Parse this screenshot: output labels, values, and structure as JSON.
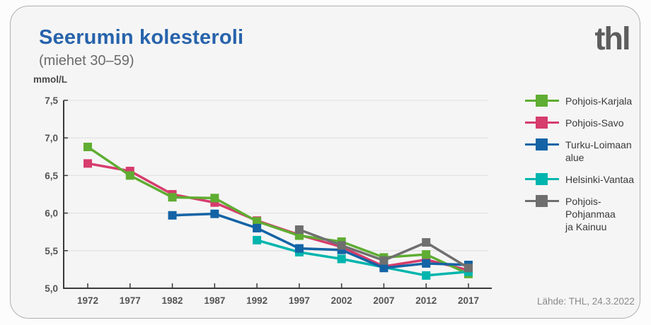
{
  "header": {
    "title": "Seerumin kolesteroli",
    "subtitle": "(miehet 30–59)",
    "logo_text": "thl"
  },
  "footer": {
    "source": "Lähde: THL, 24.3.2022"
  },
  "colors": {
    "title_blue": "#2763ab",
    "logo_gray": "#5d5d5d",
    "axis": "#3a3a3a",
    "gridline": "#e3e3e3",
    "tick_label": "#555555",
    "card_background": "#f5f5f5",
    "card_border": "#b0b0b0"
  },
  "chart_data": {
    "type": "line",
    "title": "Seerumin kolesteroli",
    "subtitle": "(miehet 30–59)",
    "ylabel": "mmol/L",
    "xlabel": "",
    "ylim": [
      5.0,
      7.5
    ],
    "ytick_step": 0.5,
    "ytick_labels": [
      "5,0",
      "5,5",
      "6,0",
      "6,5",
      "7,0",
      "7,5"
    ],
    "grid": true,
    "legend_position": "right",
    "x": [
      1972,
      1977,
      1982,
      1987,
      1992,
      1997,
      2002,
      2007,
      2012,
      2017
    ],
    "series": [
      {
        "name": "Pohjois-Karjala",
        "label_lines": [
          "Pohjois-Karjala"
        ],
        "color": "#5fad32",
        "values": [
          6.88,
          6.5,
          6.21,
          6.2,
          5.89,
          5.7,
          5.62,
          5.41,
          5.45,
          5.19
        ]
      },
      {
        "name": "Pohjois-Savo",
        "label_lines": [
          "Pohjois-Savo"
        ],
        "color": "#d63c6c",
        "values": [
          6.66,
          6.56,
          6.25,
          6.14,
          5.9,
          5.71,
          5.55,
          5.29,
          5.38,
          5.24
        ]
      },
      {
        "name": "Turku-Loimaan alue",
        "label_lines": [
          "Turku-Loimaan alue"
        ],
        "color": "#1363a5",
        "values": [
          null,
          null,
          5.97,
          5.99,
          5.8,
          5.53,
          5.51,
          5.27,
          5.33,
          5.31
        ]
      },
      {
        "name": "Helsinki-Vantaa",
        "label_lines": [
          "Helsinki-Vantaa"
        ],
        "color": "#00b5ad",
        "values": [
          null,
          null,
          null,
          null,
          5.64,
          5.48,
          5.39,
          5.28,
          5.17,
          5.22
        ]
      },
      {
        "name": "Pohjois-Pohjanmaa ja Kainuu",
        "label_lines": [
          "Pohjois-Pohjanmaa",
          "ja Kainuu"
        ],
        "color": "#6f6f6f",
        "values": [
          null,
          null,
          null,
          null,
          null,
          5.78,
          5.57,
          5.37,
          5.61,
          5.27
        ]
      }
    ],
    "draw_order": [
      1,
      0,
      3,
      2,
      4
    ]
  }
}
